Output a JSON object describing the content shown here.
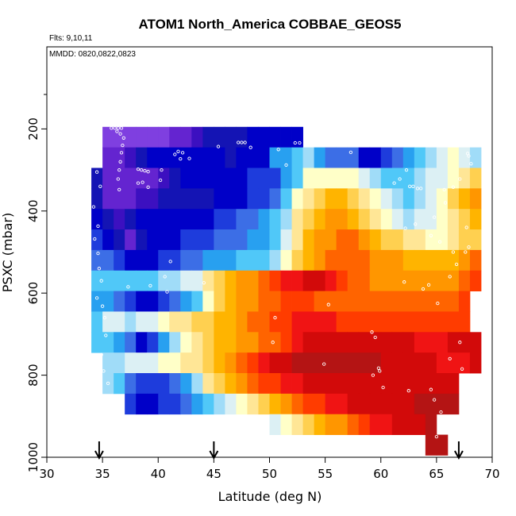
{
  "chart_data": {
    "type": "heatmap",
    "title": "ATOM1 North_America COBBAE_GEOS5",
    "annotations": {
      "flights": "Flts: 9,10,11",
      "dates": "MMDD: 0820,0822,0823"
    },
    "xlabel": "Latitude (deg N)",
    "ylabel": "PSXC (mbar)",
    "xlim": [
      30,
      70
    ],
    "ylim": [
      1000,
      0
    ],
    "x_ticks": [
      "30",
      "35",
      "40",
      "45",
      "50",
      "55",
      "60",
      "65",
      "70"
    ],
    "y_ticks": [
      "200",
      "400",
      "600",
      "800",
      "1000"
    ],
    "x_tick_values": [
      30,
      35,
      40,
      45,
      50,
      55,
      60,
      65,
      70
    ],
    "y_tick_values": [
      200,
      400,
      600,
      800,
      1000
    ],
    "grid": false,
    "colors": [
      "#7f3fe0",
      "#6424d0",
      "#3c10c0",
      "#1414b4",
      "#0000c8",
      "#1e3cdc",
      "#3c6ee6",
      "#28a0f0",
      "#50c8f8",
      "#a0dcf8",
      "#dcf0f4",
      "#ffffc8",
      "#ffe696",
      "#ffd050",
      "#ffb400",
      "#ff9600",
      "#ff6400",
      "#ff3c00",
      "#f01414",
      "#d20a0a",
      "#b41414"
    ],
    "x_start": 30.5,
    "x_step": 1.0,
    "p_start": 220,
    "p_step": 50,
    "rows": [
      {
        "p": 200,
        "x0": 35,
        "x1": 53,
        "cells": [
          0,
          0,
          0,
          0,
          0,
          0,
          1,
          1,
          2,
          3,
          3,
          3,
          3,
          4,
          4,
          4,
          4,
          4
        ]
      },
      {
        "p": 250,
        "x0": 35,
        "x1": 69,
        "cells": [
          1,
          1,
          2,
          3,
          4,
          4,
          4,
          4,
          4,
          4,
          4,
          3,
          4,
          4,
          4,
          7,
          7,
          8,
          9,
          7,
          6,
          6,
          6,
          4,
          4,
          5,
          6,
          7,
          8,
          9,
          10,
          11,
          10,
          9
        ]
      },
      {
        "p": 300,
        "x0": 34,
        "x1": 69,
        "cells": [
          3,
          1,
          1,
          1,
          1,
          1,
          2,
          3,
          4,
          4,
          4,
          4,
          4,
          4,
          5,
          5,
          5,
          7,
          8,
          11,
          11,
          11,
          11,
          11,
          10,
          9,
          8,
          8,
          8,
          9,
          10,
          10,
          11,
          12,
          13
        ]
      },
      {
        "p": 350,
        "x0": 34,
        "x1": 69,
        "cells": [
          3,
          1,
          1,
          1,
          2,
          2,
          3,
          3,
          3,
          3,
          3,
          4,
          4,
          4,
          5,
          5,
          6,
          8,
          11,
          12,
          13,
          14,
          14,
          13,
          12,
          11,
          10,
          9,
          8,
          9,
          10,
          11,
          13,
          14,
          15
        ]
      },
      {
        "p": 400,
        "x0": 34,
        "x1": 69,
        "cells": [
          4,
          3,
          2,
          3,
          4,
          4,
          4,
          4,
          4,
          4,
          4,
          5,
          5,
          6,
          6,
          7,
          8,
          9,
          12,
          13,
          14,
          15,
          15,
          14,
          13,
          12,
          11,
          10,
          9,
          10,
          10,
          11,
          12,
          13,
          14
        ]
      },
      {
        "p": 450,
        "x0": 34,
        "x1": 69,
        "cells": [
          5,
          4,
          3,
          1,
          3,
          4,
          4,
          4,
          5,
          5,
          5,
          6,
          6,
          6,
          7,
          7,
          8,
          10,
          12,
          14,
          15,
          15,
          16,
          16,
          15,
          14,
          13,
          13,
          12,
          12,
          11,
          11,
          12,
          13,
          13
        ]
      },
      {
        "p": 500,
        "x0": 34,
        "x1": 68,
        "cells": [
          6,
          6,
          5,
          4,
          4,
          4,
          5,
          5,
          6,
          6,
          7,
          7,
          7,
          8,
          8,
          8,
          9,
          11,
          13,
          14,
          15,
          16,
          16,
          16,
          16,
          15,
          15,
          15,
          14,
          14,
          14,
          14,
          14,
          15,
          16
        ]
      },
      {
        "p": 550,
        "x0": 34,
        "x1": 68,
        "cells": [
          8,
          8,
          8,
          8,
          8,
          8,
          9,
          9,
          10,
          10,
          12,
          13,
          14,
          15,
          15,
          16,
          17,
          18,
          18,
          19,
          19,
          18,
          17,
          16,
          16,
          15,
          15,
          15,
          15,
          15,
          15,
          15,
          15,
          16,
          17
        ]
      },
      {
        "p": 600,
        "x0": 34,
        "x1": 67,
        "cells": [
          7,
          7,
          6,
          5,
          4,
          4,
          5,
          6,
          7,
          8,
          11,
          13,
          14,
          15,
          15,
          16,
          16,
          17,
          17,
          17,
          16,
          16,
          16,
          16,
          16,
          16,
          16,
          16,
          16,
          16,
          16,
          16,
          16,
          17
        ]
      },
      {
        "p": 650,
        "x0": 34,
        "x1": 67,
        "cells": [
          8,
          10,
          10,
          9,
          10,
          10,
          11,
          12,
          12,
          13,
          13,
          14,
          14,
          15,
          16,
          16,
          17,
          17,
          18,
          18,
          18,
          18,
          17,
          17,
          17,
          17,
          17,
          17,
          17,
          17,
          17,
          17,
          17,
          17
        ]
      },
      {
        "p": 700,
        "x0": 34,
        "x1": 68,
        "cells": [
          8,
          8,
          7,
          6,
          4,
          5,
          7,
          9,
          11,
          12,
          13,
          14,
          14,
          15,
          15,
          16,
          16,
          17,
          18,
          19,
          19,
          19,
          19,
          19,
          19,
          19,
          19,
          19,
          19,
          18,
          18,
          18,
          19,
          19,
          19
        ]
      },
      {
        "p": 750,
        "x0": 35,
        "x1": 68,
        "cells": [
          9,
          9,
          10,
          10,
          10,
          11,
          11,
          12,
          12,
          13,
          14,
          15,
          16,
          17,
          18,
          19,
          19,
          20,
          20,
          20,
          20,
          20,
          20,
          20,
          20,
          19,
          19,
          19,
          19,
          19,
          18,
          18,
          18,
          19
        ]
      },
      {
        "p": 800,
        "x0": 35,
        "x1": 67,
        "cells": [
          9,
          8,
          6,
          5,
          5,
          5,
          6,
          7,
          9,
          12,
          13,
          14,
          15,
          16,
          17,
          17,
          18,
          18,
          19,
          19,
          19,
          19,
          19,
          19,
          19,
          19,
          19,
          19,
          19,
          19,
          19,
          19
        ]
      },
      {
        "p": 850,
        "x0": 37,
        "x1": 67,
        "cells": [
          5,
          4,
          4,
          5,
          5,
          6,
          7,
          8,
          9,
          10,
          11,
          12,
          13,
          14,
          15,
          16,
          17,
          17,
          18,
          18,
          19,
          19,
          19,
          19,
          19,
          19,
          20,
          20,
          20,
          20
        ]
      },
      {
        "p": 900,
        "x0": 50,
        "x1": 65,
        "cells": [
          10,
          11,
          12,
          13,
          14,
          15,
          15,
          16,
          17,
          18,
          18,
          19,
          19,
          19,
          20
        ]
      },
      {
        "p": 950,
        "x0": 64,
        "x1": 66,
        "cells": [
          20,
          20
        ]
      }
    ],
    "markers": {
      "latitudes": [
        34.7,
        45.0,
        67.0
      ],
      "pressure": 1000
    },
    "points": [
      [
        35.8,
        198
      ],
      [
        36.1,
        198
      ],
      [
        36.4,
        198
      ],
      [
        36.7,
        198
      ],
      [
        36.3,
        206
      ],
      [
        36.6,
        212
      ],
      [
        36.9,
        222
      ],
      [
        36.8,
        240
      ],
      [
        36.7,
        258
      ],
      [
        36.6,
        280
      ],
      [
        36.5,
        300
      ],
      [
        36.4,
        322
      ],
      [
        36.5,
        348
      ],
      [
        38.2,
        298
      ],
      [
        38.5,
        300
      ],
      [
        38.8,
        302
      ],
      [
        39.1,
        304
      ],
      [
        38.6,
        330
      ],
      [
        39.1,
        342
      ],
      [
        38.2,
        332
      ],
      [
        40.2,
        325
      ],
      [
        40.3,
        300
      ],
      [
        41.5,
        262
      ],
      [
        41.8,
        255
      ],
      [
        42.2,
        258
      ],
      [
        42.0,
        273
      ],
      [
        42.8,
        272
      ],
      [
        45.4,
        243
      ],
      [
        47.2,
        233
      ],
      [
        47.5,
        233
      ],
      [
        47.8,
        233
      ],
      [
        48.3,
        245
      ],
      [
        50.8,
        250
      ],
      [
        51.5,
        288
      ],
      [
        52.3,
        234
      ],
      [
        52.7,
        234
      ],
      [
        55.5,
        228
      ],
      [
        55.8,
        228
      ],
      [
        56.1,
        228
      ],
      [
        56.4,
        228
      ],
      [
        56.9,
        232
      ],
      [
        57.3,
        257
      ],
      [
        60.8,
        228
      ],
      [
        61.1,
        228
      ],
      [
        62.3,
        300
      ],
      [
        61.2,
        332
      ],
      [
        62.6,
        340
      ],
      [
        62.9,
        340
      ],
      [
        63.3,
        345
      ],
      [
        63.6,
        345
      ],
      [
        61.7,
        322
      ],
      [
        65.7,
        348
      ],
      [
        66.5,
        342
      ],
      [
        67.1,
        322
      ],
      [
        67.8,
        260
      ],
      [
        68.2,
        228
      ],
      [
        68.5,
        232
      ],
      [
        67.9,
        266
      ],
      [
        68.1,
        285
      ],
      [
        65.8,
        380
      ],
      [
        64.8,
        415
      ],
      [
        63.1,
        432
      ],
      [
        62.2,
        442
      ],
      [
        64.5,
        460
      ],
      [
        65.3,
        475
      ],
      [
        66.5,
        500
      ],
      [
        67.9,
        488
      ],
      [
        67.7,
        440
      ],
      [
        67.6,
        500
      ],
      [
        66.8,
        530
      ],
      [
        66.2,
        560
      ],
      [
        64.3,
        580
      ],
      [
        62.1,
        573
      ],
      [
        63.8,
        590
      ],
      [
        65.1,
        625
      ],
      [
        67.1,
        720
      ],
      [
        67.3,
        785
      ],
      [
        64.5,
        835
      ],
      [
        62.5,
        838
      ],
      [
        64.8,
        860
      ],
      [
        65.4,
        890
      ],
      [
        65.2,
        920
      ],
      [
        65.0,
        950
      ],
      [
        66.2,
        760
      ],
      [
        59.2,
        695
      ],
      [
        59.5,
        708
      ],
      [
        59.8,
        783
      ],
      [
        59.9,
        790
      ],
      [
        60.2,
        830
      ],
      [
        59.3,
        800
      ],
      [
        55.3,
        628
      ],
      [
        54.9,
        773
      ],
      [
        50.5,
        660
      ],
      [
        50.3,
        720
      ],
      [
        44.1,
        575
      ],
      [
        41.1,
        523
      ],
      [
        40.6,
        560
      ],
      [
        40.8,
        597
      ],
      [
        39.3,
        582
      ],
      [
        37.3,
        585
      ],
      [
        34.5,
        305
      ],
      [
        34.8,
        340
      ],
      [
        34.2,
        390
      ],
      [
        34.6,
        437
      ],
      [
        34.3,
        468
      ],
      [
        34.6,
        503
      ],
      [
        34.7,
        540
      ],
      [
        34.9,
        570
      ],
      [
        34.5,
        612
      ],
      [
        35.0,
        632
      ],
      [
        35.2,
        660
      ],
      [
        35.3,
        703
      ],
      [
        34.9,
        750
      ],
      [
        35.1,
        790
      ],
      [
        35.5,
        820
      ]
    ]
  }
}
